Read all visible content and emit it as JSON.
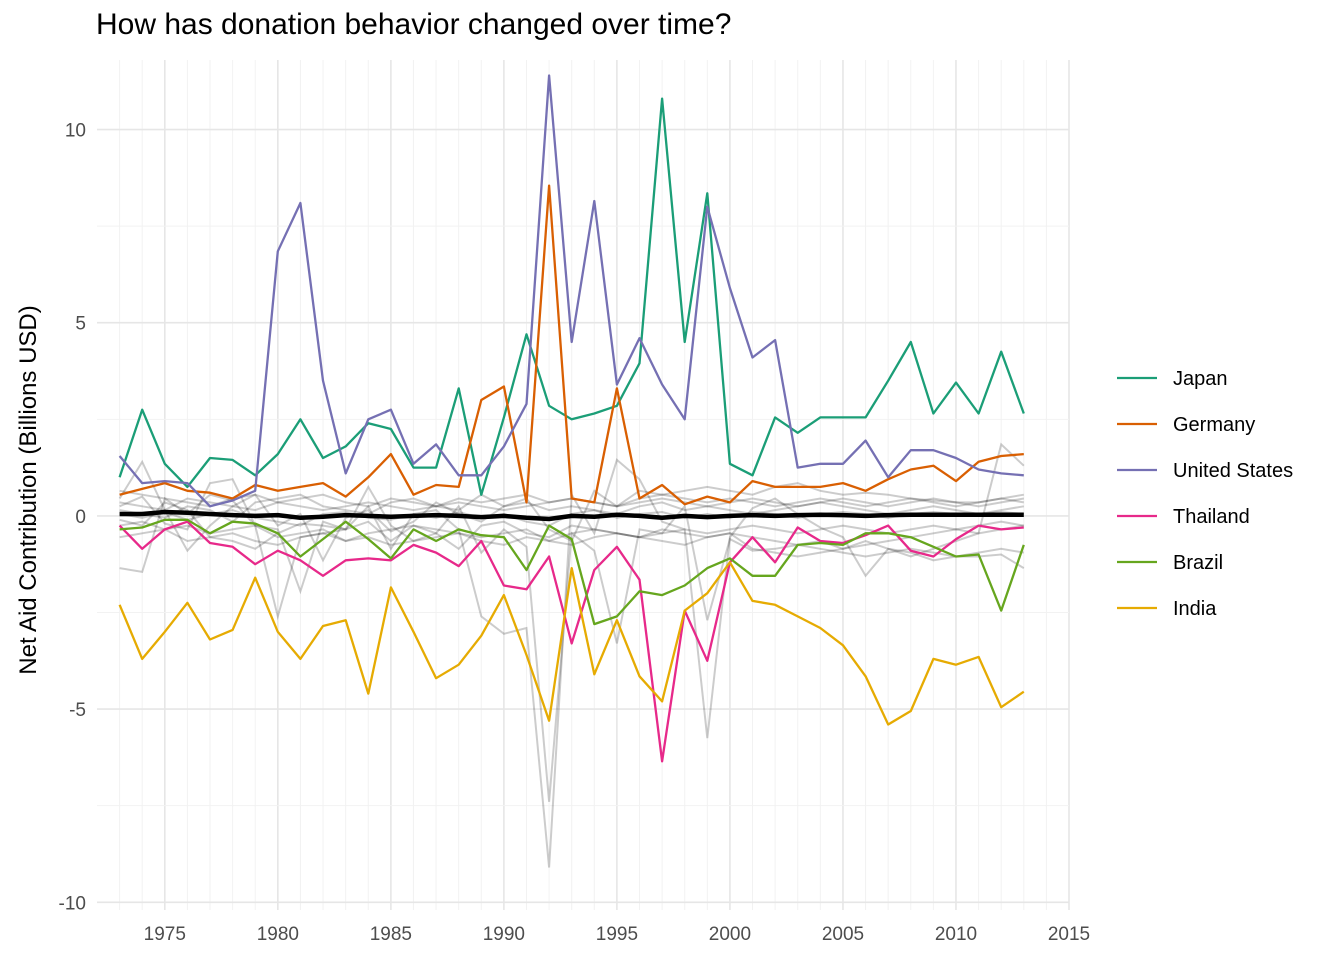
{
  "chart_data": {
    "type": "line",
    "title": "How has donation behavior changed over time?",
    "xlabel": "",
    "ylabel": "Net Aid Contribution (Billions USD)",
    "xlim": [
      1972,
      2015
    ],
    "ylim": [
      -10.2,
      11.8
    ],
    "x_ticks": [
      1975,
      1980,
      1985,
      1990,
      1995,
      2000,
      2005,
      2010,
      2015
    ],
    "y_ticks": [
      10,
      5,
      0,
      -5,
      -10
    ],
    "y_tick_labels": [
      "10",
      "5",
      "0",
      "-5",
      "-10"
    ],
    "grid": true,
    "legend_position": "right",
    "x": [
      1973,
      1974,
      1975,
      1976,
      1977,
      1978,
      1979,
      1980,
      1981,
      1982,
      1983,
      1984,
      1985,
      1986,
      1987,
      1988,
      1989,
      1990,
      1991,
      1992,
      1993,
      1994,
      1995,
      1996,
      1997,
      1998,
      1999,
      2000,
      2001,
      2002,
      2003,
      2004,
      2005,
      2006,
      2007,
      2008,
      2009,
      2010,
      2011,
      2012,
      2013
    ],
    "series": [
      {
        "name": "Japan",
        "color": "#1b9e77",
        "values": [
          1.0,
          2.75,
          1.35,
          0.75,
          1.5,
          1.45,
          1.05,
          1.6,
          2.5,
          1.5,
          1.8,
          2.4,
          2.25,
          1.25,
          1.25,
          3.3,
          0.55,
          2.55,
          4.7,
          2.85,
          2.5,
          2.65,
          2.85,
          3.95,
          10.8,
          4.5,
          8.35,
          1.35,
          1.05,
          2.55,
          2.15,
          2.55,
          2.55,
          2.55,
          3.5,
          4.5,
          2.65,
          3.45,
          2.65,
          4.25,
          2.65
        ]
      },
      {
        "name": "Germany",
        "color": "#d95f02",
        "values": [
          0.55,
          0.7,
          0.85,
          0.65,
          0.6,
          0.45,
          0.8,
          0.65,
          0.75,
          0.85,
          0.5,
          1.0,
          1.6,
          0.55,
          0.8,
          0.75,
          3.0,
          3.35,
          0.35,
          8.55,
          0.45,
          0.35,
          3.3,
          0.45,
          0.8,
          0.3,
          0.5,
          0.35,
          0.9,
          0.75,
          0.75,
          0.75,
          0.85,
          0.65,
          0.95,
          1.2,
          1.3,
          0.9,
          1.4,
          1.55,
          1.6
        ]
      },
      {
        "name": "United States",
        "color": "#7570b3",
        "values": [
          1.55,
          0.85,
          0.9,
          0.85,
          0.25,
          0.4,
          0.65,
          6.85,
          8.1,
          3.5,
          1.1,
          2.5,
          2.75,
          1.35,
          1.85,
          1.05,
          1.05,
          1.8,
          2.9,
          11.4,
          4.5,
          8.15,
          3.4,
          4.6,
          3.4,
          2.5,
          8.0,
          5.9,
          4.1,
          4.55,
          1.25,
          1.35,
          1.35,
          1.95,
          1.0,
          1.7,
          1.7,
          1.5,
          1.2,
          1.1,
          1.05
        ]
      },
      {
        "name": "Thailand",
        "color": "#e7298a",
        "values": [
          -0.25,
          -0.85,
          -0.35,
          -0.15,
          -0.7,
          -0.8,
          -1.25,
          -0.9,
          -1.15,
          -1.55,
          -1.15,
          -1.1,
          -1.15,
          -0.75,
          -0.95,
          -1.3,
          -0.65,
          -1.8,
          -1.9,
          -1.05,
          -3.3,
          -1.4,
          -0.8,
          -1.65,
          -6.35,
          -2.45,
          -3.75,
          -1.2,
          -0.55,
          -1.2,
          -0.3,
          -0.65,
          -0.7,
          -0.5,
          -0.25,
          -0.9,
          -1.05,
          -0.6,
          -0.25,
          -0.35,
          -0.3
        ]
      },
      {
        "name": "Brazil",
        "color": "#66a61e",
        "values": [
          -0.35,
          -0.3,
          -0.1,
          -0.1,
          -0.45,
          -0.15,
          -0.2,
          -0.45,
          -1.05,
          -0.6,
          -0.15,
          -0.6,
          -1.1,
          -0.35,
          -0.65,
          -0.35,
          -0.5,
          -0.55,
          -1.4,
          -0.25,
          -0.6,
          -2.8,
          -2.6,
          -1.95,
          -2.05,
          -1.8,
          -1.35,
          -1.1,
          -1.55,
          -1.55,
          -0.75,
          -0.7,
          -0.75,
          -0.45,
          -0.45,
          -0.55,
          -0.8,
          -1.05,
          -1.0,
          -2.45,
          -0.75
        ]
      },
      {
        "name": "India",
        "color": "#e6ab02",
        "values": [
          -2.3,
          -3.7,
          -3.0,
          -2.25,
          -3.2,
          -2.95,
          -1.6,
          -3.0,
          -3.7,
          -2.85,
          -2.7,
          -4.6,
          -1.85,
          -3.0,
          -4.2,
          -3.85,
          -3.1,
          -2.05,
          -3.6,
          -5.3,
          -1.35,
          -4.1,
          -2.7,
          -4.15,
          -4.8,
          -2.45,
          -2.0,
          -1.2,
          -2.2,
          -2.3,
          -2.6,
          -2.9,
          -3.35,
          -4.15,
          -5.4,
          -5.05,
          -3.7,
          -3.85,
          -3.65,
          -4.95,
          -4.55
        ]
      }
    ],
    "background_series": [
      {
        "values": [
          0.25,
          0.5,
          -0.2,
          -0.35,
          0.85,
          0.95,
          -0.25,
          -2.6,
          -0.55,
          -0.45,
          -0.35,
          0.25,
          -0.85,
          0.05,
          0.15,
          -0.35,
          -2.6,
          -3.05,
          -2.9,
          -9.1,
          0.55,
          -0.45,
          1.45,
          0.95,
          -0.15,
          -0.35,
          -5.75,
          -0.55,
          0.2,
          0.45,
          0.05,
          -0.3,
          -0.55,
          -1.55,
          -0.85,
          -1.05,
          -0.85,
          -0.65,
          -0.45,
          1.85,
          1.3
        ]
      },
      {
        "values": [
          -1.35,
          -1.45,
          0.45,
          0.05,
          0.55,
          0.4,
          -0.25,
          -0.35,
          -1.95,
          -0.15,
          -0.35,
          0.75,
          -0.25,
          -0.65,
          -0.45,
          0.25,
          -0.95,
          -0.35,
          -0.8,
          -7.4,
          -0.45,
          -0.9,
          -3.3,
          -0.35,
          -0.45,
          0.25,
          -2.7,
          -0.6,
          -0.9,
          -0.85,
          -0.75,
          -0.65,
          -0.85,
          -0.65,
          -0.85,
          -0.95,
          -1.15,
          -1.05,
          -1.05,
          -1.0,
          -1.35
        ]
      },
      {
        "values": [
          0.45,
          1.4,
          0.15,
          -0.9,
          -0.25,
          0.25,
          0.55,
          -0.25,
          0.05,
          -1.15,
          -0.05,
          0.15,
          -0.4,
          -0.15,
          0.35,
          0.05,
          -0.15,
          0.25,
          0.45,
          -0.35,
          -0.65,
          0.65,
          0.25,
          0.65,
          0.55,
          0.65,
          0.75,
          0.65,
          0.55,
          0.75,
          0.85,
          0.65,
          0.55,
          0.6,
          0.55,
          0.45,
          0.4,
          0.35,
          0.35,
          0.45,
          0.55
        ]
      },
      {
        "values": [
          -0.1,
          -0.25,
          0.35,
          0.15,
          -0.55,
          -0.65,
          -0.85,
          -0.45,
          -0.2,
          -0.25,
          -0.35,
          -0.15,
          -0.65,
          -0.25,
          -0.45,
          -0.85,
          -0.25,
          -0.15,
          -0.45,
          -0.55,
          -0.25,
          -0.35,
          -0.45,
          -0.55,
          -0.35,
          -0.45,
          -0.55,
          -0.45,
          -0.85,
          -0.95,
          -1.05,
          -0.95,
          -0.85,
          -0.75,
          -0.65,
          -0.55,
          -0.45,
          -0.35,
          -0.25,
          -0.15,
          -0.25
        ]
      },
      {
        "values": [
          0.15,
          0.05,
          -0.05,
          0.25,
          0.15,
          -0.15,
          0.35,
          0.45,
          0.55,
          0.25,
          0.15,
          0.05,
          0.35,
          0.45,
          0.25,
          0.15,
          0.55,
          0.25,
          0.35,
          0.15,
          0.25,
          0.15,
          0.05,
          0.25,
          0.35,
          0.15,
          0.25,
          0.15,
          0.05,
          0.15,
          0.25,
          0.35,
          0.25,
          0.15,
          0.05,
          0.15,
          0.25,
          0.15,
          0.05,
          0.15,
          0.25
        ]
      },
      {
        "values": [
          -0.25,
          -0.15,
          -0.35,
          -0.25,
          -0.45,
          -0.35,
          -0.25,
          -0.55,
          -0.45,
          -0.35,
          -0.65,
          -0.45,
          -0.35,
          -0.25,
          -0.35,
          -0.45,
          -0.55,
          -0.45,
          -0.35,
          -0.65,
          -0.45,
          -0.35,
          -0.45,
          -0.55,
          -0.45,
          -0.35,
          -0.45,
          -0.35,
          -0.25,
          -0.35,
          -0.45,
          -0.35,
          -0.25,
          -0.35,
          -0.45,
          -0.35,
          -0.25,
          -0.35,
          -0.45,
          -0.35,
          -0.25
        ]
      },
      {
        "values": [
          0.35,
          0.25,
          0.15,
          0.45,
          0.35,
          0.25,
          0.15,
          0.35,
          0.45,
          0.55,
          0.35,
          0.25,
          0.45,
          0.35,
          0.25,
          0.45,
          0.35,
          0.45,
          0.55,
          0.35,
          0.45,
          0.35,
          0.25,
          0.45,
          0.55,
          0.45,
          0.35,
          0.45,
          0.35,
          0.25,
          0.35,
          0.45,
          0.35,
          0.25,
          0.35,
          0.45,
          0.35,
          0.25,
          0.35,
          0.45,
          0.35
        ]
      },
      {
        "values": [
          0.05,
          -0.05,
          0.1,
          -0.1,
          0.05,
          0.15,
          -0.05,
          -0.15,
          -0.25,
          0.05,
          0.1,
          -0.05,
          -0.1,
          0.05,
          -0.05,
          0.1,
          -0.05,
          0.05,
          -0.15,
          -0.25,
          0.05,
          0.15,
          -0.05,
          0.05,
          0.1,
          -0.05,
          0.05,
          -0.05,
          0.1,
          0.05,
          -0.05,
          0.05,
          0.1,
          0.05,
          -0.05,
          0.05,
          0.1,
          0.05,
          0.05,
          0.1,
          0.05
        ]
      },
      {
        "values": [
          -0.55,
          -0.45,
          -0.35,
          -0.65,
          -0.55,
          -0.45,
          -0.65,
          -0.75,
          -0.55,
          -0.45,
          -0.65,
          -0.55,
          -0.75,
          -0.65,
          -0.55,
          -0.45,
          -0.65,
          -0.75,
          -0.55,
          -0.65,
          -0.75,
          -0.55,
          -0.45,
          -0.55,
          -0.65,
          -0.75,
          -0.55,
          -0.45,
          -0.55,
          -0.65,
          -0.75,
          -0.85,
          -0.95,
          -1.05,
          -0.95,
          -0.85,
          -0.95,
          -1.05,
          -0.95,
          -0.85,
          -0.95
        ]
      },
      {
        "values": [
          0.65,
          0.55,
          0.45,
          0.35,
          0.25,
          0.45,
          0.55,
          0.35,
          0.25,
          0.15,
          0.25,
          0.35,
          0.25,
          0.15,
          0.25,
          0.35,
          0.25,
          0.15,
          0.25,
          0.35,
          0.45,
          0.35,
          0.25,
          0.35,
          0.45,
          0.35,
          0.25,
          0.35,
          0.45,
          0.35,
          0.25,
          0.35,
          0.45,
          0.35,
          0.25,
          0.35,
          0.45,
          0.35,
          0.25,
          0.35,
          0.45
        ]
      }
    ],
    "mean_line": {
      "color": "#000000",
      "values": [
        0.05,
        0.05,
        0.1,
        0.08,
        0.05,
        0.02,
        0.0,
        0.02,
        -0.05,
        -0.02,
        0.02,
        0.0,
        -0.02,
        0.0,
        0.02,
        0.0,
        -0.03,
        0.0,
        -0.05,
        -0.08,
        0.0,
        -0.02,
        0.03,
        0.0,
        -0.05,
        0.0,
        -0.03,
        0.0,
        0.02,
        0.0,
        0.02,
        0.03,
        0.02,
        0.0,
        0.02,
        0.03,
        0.03,
        0.03,
        0.03,
        0.03,
        0.03
      ]
    }
  }
}
